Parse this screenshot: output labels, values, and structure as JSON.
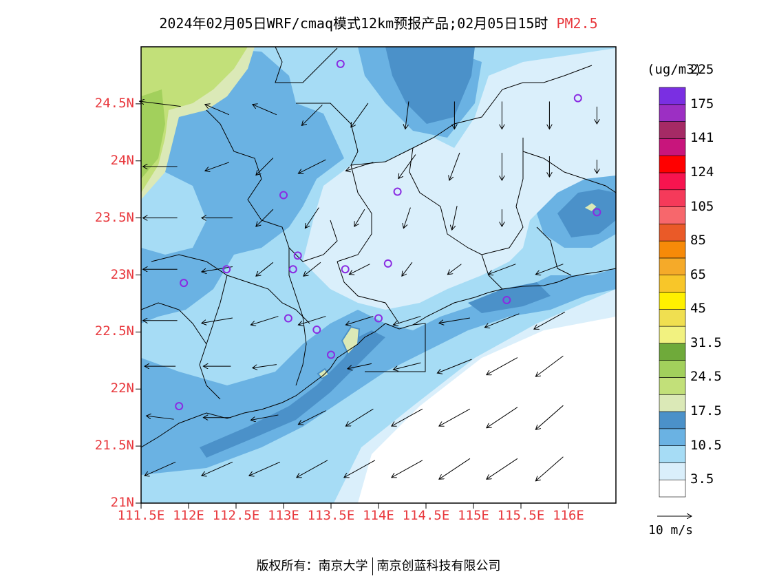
{
  "title": {
    "main": "2024年02月05日WRF/cmaq模式12km预报产品;02月05日15时",
    "pollutant": "PM2.5"
  },
  "map": {
    "lat_labels": [
      "24.5N",
      "24N",
      "23.5N",
      "23N",
      "22.5N",
      "22N",
      "21.5N",
      "21N"
    ],
    "lon_labels": [
      "111.5E",
      "112E",
      "112.5E",
      "113E",
      "113.5E",
      "114E",
      "114.5E",
      "115E",
      "115.5E",
      "116E"
    ],
    "lon_range": [
      111.5,
      116.5
    ],
    "lat_range": [
      21.0,
      25.0
    ],
    "stations": [
      {
        "lon": 113.6,
        "lat": 24.85
      },
      {
        "lon": 116.1,
        "lat": 24.55
      },
      {
        "lon": 113.0,
        "lat": 23.7
      },
      {
        "lon": 114.2,
        "lat": 23.73
      },
      {
        "lon": 116.3,
        "lat": 23.55
      },
      {
        "lon": 112.4,
        "lat": 23.05
      },
      {
        "lon": 113.1,
        "lat": 23.05
      },
      {
        "lon": 113.15,
        "lat": 23.17
      },
      {
        "lon": 113.65,
        "lat": 23.05
      },
      {
        "lon": 114.1,
        "lat": 23.1
      },
      {
        "lon": 111.95,
        "lat": 22.93
      },
      {
        "lon": 115.35,
        "lat": 22.78
      },
      {
        "lon": 113.05,
        "lat": 22.62
      },
      {
        "lon": 113.35,
        "lat": 22.52
      },
      {
        "lon": 114.0,
        "lat": 22.62
      },
      {
        "lon": 113.5,
        "lat": 22.3
      },
      {
        "lon": 111.9,
        "lat": 21.85
      }
    ],
    "winds": [
      {
        "lon": 111.7,
        "lat": 24.5,
        "u": -2.4,
        "v": 0.3
      },
      {
        "lon": 112.3,
        "lat": 24.45,
        "u": -1.4,
        "v": 0.6
      },
      {
        "lon": 112.8,
        "lat": 24.45,
        "u": -1.4,
        "v": 0.6
      },
      {
        "lon": 113.3,
        "lat": 24.4,
        "u": -1.2,
        "v": -1.2
      },
      {
        "lon": 113.8,
        "lat": 24.4,
        "u": -1.0,
        "v": -1.4
      },
      {
        "lon": 114.3,
        "lat": 24.4,
        "u": -0.2,
        "v": -1.6
      },
      {
        "lon": 114.8,
        "lat": 24.4,
        "u": 0.0,
        "v": -1.6
      },
      {
        "lon": 115.3,
        "lat": 24.4,
        "u": 0.0,
        "v": -1.6
      },
      {
        "lon": 115.8,
        "lat": 24.4,
        "u": 0.0,
        "v": -1.6
      },
      {
        "lon": 116.3,
        "lat": 24.4,
        "u": 0.0,
        "v": -1.0
      },
      {
        "lon": 111.7,
        "lat": 23.95,
        "u": -2.0,
        "v": 0.0
      },
      {
        "lon": 112.3,
        "lat": 23.95,
        "u": -1.4,
        "v": -0.5
      },
      {
        "lon": 112.8,
        "lat": 23.95,
        "u": -1.0,
        "v": -1.0
      },
      {
        "lon": 113.3,
        "lat": 23.95,
        "u": -1.6,
        "v": -0.8
      },
      {
        "lon": 113.8,
        "lat": 23.95,
        "u": -1.6,
        "v": -0.5
      },
      {
        "lon": 114.3,
        "lat": 23.95,
        "u": -1.0,
        "v": -1.4
      },
      {
        "lon": 114.8,
        "lat": 23.95,
        "u": -0.6,
        "v": -1.6
      },
      {
        "lon": 115.3,
        "lat": 23.95,
        "u": 0.0,
        "v": -1.6
      },
      {
        "lon": 115.8,
        "lat": 23.95,
        "u": 0.0,
        "v": -1.2
      },
      {
        "lon": 116.3,
        "lat": 23.95,
        "u": 0.0,
        "v": -0.8
      },
      {
        "lon": 111.7,
        "lat": 23.5,
        "u": -2.0,
        "v": 0.0
      },
      {
        "lon": 112.3,
        "lat": 23.5,
        "u": -1.8,
        "v": 0.0
      },
      {
        "lon": 112.8,
        "lat": 23.5,
        "u": -1.0,
        "v": -1.0
      },
      {
        "lon": 113.3,
        "lat": 23.5,
        "u": -0.8,
        "v": -1.2
      },
      {
        "lon": 113.8,
        "lat": 23.5,
        "u": -0.6,
        "v": -1.0
      },
      {
        "lon": 114.3,
        "lat": 23.5,
        "u": -0.4,
        "v": -1.2
      },
      {
        "lon": 114.8,
        "lat": 23.5,
        "u": -0.3,
        "v": -1.4
      },
      {
        "lon": 115.3,
        "lat": 23.5,
        "u": 0.0,
        "v": -1.0
      },
      {
        "lon": 111.7,
        "lat": 23.05,
        "u": -2.0,
        "v": 0.0
      },
      {
        "lon": 112.3,
        "lat": 23.05,
        "u": -1.8,
        "v": -0.3
      },
      {
        "lon": 112.8,
        "lat": 23.05,
        "u": -1.0,
        "v": -0.8
      },
      {
        "lon": 113.3,
        "lat": 23.05,
        "u": -1.0,
        "v": -0.8
      },
      {
        "lon": 113.8,
        "lat": 23.05,
        "u": -1.2,
        "v": -0.6
      },
      {
        "lon": 114.3,
        "lat": 23.05,
        "u": -0.6,
        "v": -0.8
      },
      {
        "lon": 114.8,
        "lat": 23.05,
        "u": -0.8,
        "v": -0.6
      },
      {
        "lon": 115.3,
        "lat": 23.05,
        "u": -1.6,
        "v": -0.6
      },
      {
        "lon": 115.8,
        "lat": 23.05,
        "u": -1.6,
        "v": -0.6
      },
      {
        "lon": 111.7,
        "lat": 22.6,
        "u": -2.0,
        "v": 0.0
      },
      {
        "lon": 112.3,
        "lat": 22.6,
        "u": -1.8,
        "v": -0.3
      },
      {
        "lon": 112.8,
        "lat": 22.6,
        "u": -1.6,
        "v": -0.5
      },
      {
        "lon": 113.3,
        "lat": 22.6,
        "u": -1.6,
        "v": -0.5
      },
      {
        "lon": 113.8,
        "lat": 22.6,
        "u": -1.6,
        "v": -0.5
      },
      {
        "lon": 114.3,
        "lat": 22.6,
        "u": -1.6,
        "v": -0.5
      },
      {
        "lon": 114.8,
        "lat": 22.6,
        "u": -1.8,
        "v": -0.3
      },
      {
        "lon": 115.3,
        "lat": 22.6,
        "u": -2.0,
        "v": -0.8
      },
      {
        "lon": 115.8,
        "lat": 22.6,
        "u": -1.8,
        "v": -1.0
      },
      {
        "lon": 111.7,
        "lat": 22.2,
        "u": -1.8,
        "v": 0.0
      },
      {
        "lon": 112.3,
        "lat": 22.2,
        "u": -1.6,
        "v": 0.0
      },
      {
        "lon": 112.8,
        "lat": 22.2,
        "u": -1.4,
        "v": -0.2
      },
      {
        "lon": 113.8,
        "lat": 22.2,
        "u": -1.4,
        "v": -0.3
      },
      {
        "lon": 114.3,
        "lat": 22.2,
        "u": -1.6,
        "v": -0.4
      },
      {
        "lon": 114.8,
        "lat": 22.2,
        "u": -2.0,
        "v": -0.8
      },
      {
        "lon": 115.3,
        "lat": 22.2,
        "u": -1.8,
        "v": -1.0
      },
      {
        "lon": 115.8,
        "lat": 22.2,
        "u": -1.6,
        "v": -1.2
      },
      {
        "lon": 111.7,
        "lat": 21.75,
        "u": -1.6,
        "v": 0.2
      },
      {
        "lon": 112.3,
        "lat": 21.75,
        "u": -1.6,
        "v": 0.0
      },
      {
        "lon": 112.8,
        "lat": 21.75,
        "u": -1.6,
        "v": -0.3
      },
      {
        "lon": 113.3,
        "lat": 21.75,
        "u": -1.6,
        "v": -0.8
      },
      {
        "lon": 113.8,
        "lat": 21.75,
        "u": -1.6,
        "v": -1.0
      },
      {
        "lon": 114.3,
        "lat": 21.75,
        "u": -1.8,
        "v": -1.0
      },
      {
        "lon": 114.8,
        "lat": 21.75,
        "u": -1.8,
        "v": -1.0
      },
      {
        "lon": 115.3,
        "lat": 21.75,
        "u": -1.8,
        "v": -1.2
      },
      {
        "lon": 115.8,
        "lat": 21.75,
        "u": -1.6,
        "v": -1.4
      },
      {
        "lon": 111.7,
        "lat": 21.3,
        "u": -1.8,
        "v": -0.8
      },
      {
        "lon": 112.3,
        "lat": 21.3,
        "u": -1.8,
        "v": -0.8
      },
      {
        "lon": 112.8,
        "lat": 21.3,
        "u": -1.8,
        "v": -0.8
      },
      {
        "lon": 113.3,
        "lat": 21.3,
        "u": -1.8,
        "v": -1.0
      },
      {
        "lon": 113.8,
        "lat": 21.3,
        "u": -1.8,
        "v": -1.0
      },
      {
        "lon": 114.3,
        "lat": 21.3,
        "u": -1.8,
        "v": -1.0
      },
      {
        "lon": 114.8,
        "lat": 21.3,
        "u": -1.8,
        "v": -1.2
      },
      {
        "lon": 115.3,
        "lat": 21.3,
        "u": -1.8,
        "v": -1.2
      },
      {
        "lon": 115.8,
        "lat": 21.3,
        "u": -1.6,
        "v": -1.4
      }
    ]
  },
  "colorbar": {
    "units": "(ug/m3)",
    "colors": [
      "#ffffff",
      "#daeffb",
      "#a6dcf5",
      "#6ab2e3",
      "#4b91c9",
      "#dbe9b7",
      "#c2e079",
      "#a2d05c",
      "#6faa3a",
      "#f2f280",
      "#f0df50",
      "#fff000",
      "#f8c629",
      "#f5aa29",
      "#f78a08",
      "#ea5a28",
      "#f7676c",
      "#f53a5a",
      "#f7144f",
      "#ff0000",
      "#c8157c",
      "#a52a65",
      "#9c2fc3",
      "#7a2fe2"
    ],
    "labels": [
      "3.5",
      "10.5",
      "17.5",
      "24.5",
      "31.5",
      "45",
      "65",
      "85",
      "105",
      "124",
      "141",
      "175",
      "225"
    ]
  },
  "wind_legend": {
    "text": "10 m/s"
  },
  "copyright": {
    "prefix": "版权所有：",
    "org1": "南京大学",
    "org2": "南京创蓝科技有限公司"
  }
}
